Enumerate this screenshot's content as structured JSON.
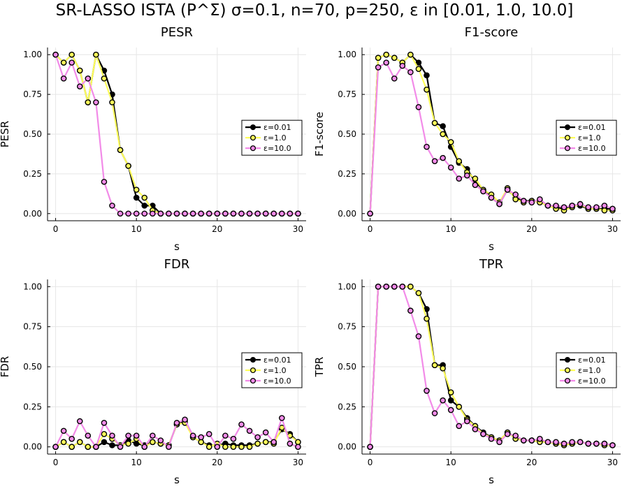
{
  "figure": {
    "title": "SR-LASSO ISTA (P^Σ)  σ=0.1,  n=70,  p=250,  ε in [0.01, 1.0, 10.0]"
  },
  "colors": {
    "eps_0_01": "#000000",
    "eps_1_0": "#ffff5a",
    "eps_10_0": "#f28be8",
    "marker_edge": "#000000",
    "grid": "#e6e6e6"
  },
  "chart_data": [
    {
      "type": "line",
      "title": "PESR",
      "xlabel": "s",
      "ylabel": "PESR",
      "xlim": [
        -1,
        31
      ],
      "ylim": [
        -0.045,
        1.045
      ],
      "xticks": [
        0,
        10,
        20,
        30
      ],
      "yticks": [
        "0.00",
        "0.25",
        "0.50",
        "0.75",
        "1.00"
      ],
      "grid": true,
      "legend": "right",
      "x": [
        0,
        1,
        2,
        3,
        4,
        5,
        6,
        7,
        8,
        9,
        10,
        11,
        12,
        13,
        14,
        15,
        16,
        17,
        18,
        19,
        20,
        21,
        22,
        23,
        24,
        25,
        26,
        27,
        28,
        29,
        30
      ],
      "series": [
        {
          "name": "ε=0.01",
          "values": [
            1.0,
            0.95,
            1.0,
            0.9,
            0.7,
            1.0,
            0.9,
            0.75,
            0.4,
            0.3,
            0.1,
            0.05,
            0.05,
            0,
            0,
            0,
            0,
            0,
            0,
            0,
            0,
            0,
            0,
            0,
            0,
            0,
            0,
            0,
            0,
            0,
            0
          ]
        },
        {
          "name": "ε=1.0",
          "values": [
            1.0,
            0.95,
            1.0,
            0.9,
            0.7,
            1.0,
            0.85,
            0.7,
            0.4,
            0.3,
            0.15,
            0.1,
            0.02,
            0,
            0,
            0,
            0,
            0,
            0,
            0,
            0,
            0,
            0,
            0,
            0,
            0,
            0,
            0,
            0,
            0,
            0
          ]
        },
        {
          "name": "ε=10.0",
          "values": [
            1.0,
            0.85,
            0.95,
            0.8,
            0.85,
            0.7,
            0.2,
            0.05,
            0,
            0,
            0,
            0,
            0,
            0,
            0,
            0,
            0,
            0,
            0,
            0,
            0,
            0,
            0,
            0,
            0,
            0,
            0,
            0,
            0,
            0,
            0
          ]
        }
      ]
    },
    {
      "type": "line",
      "title": "F1-score",
      "xlabel": "s",
      "ylabel": "F1-score",
      "xlim": [
        -1,
        31
      ],
      "ylim": [
        -0.045,
        1.045
      ],
      "xticks": [
        0,
        10,
        20,
        30
      ],
      "yticks": [
        "0.00",
        "0.25",
        "0.50",
        "0.75",
        "1.00"
      ],
      "grid": true,
      "legend": "right",
      "x": [
        0,
        1,
        2,
        3,
        4,
        5,
        6,
        7,
        8,
        9,
        10,
        11,
        12,
        13,
        14,
        15,
        16,
        17,
        18,
        19,
        20,
        21,
        22,
        23,
        24,
        25,
        26,
        27,
        28,
        29,
        30
      ],
      "series": [
        {
          "name": "ε=0.01",
          "values": [
            0,
            0.98,
            1.0,
            0.98,
            0.95,
            1.0,
            0.95,
            0.87,
            0.57,
            0.55,
            0.42,
            0.32,
            0.28,
            0.2,
            0.15,
            0.1,
            0.06,
            0.15,
            0.1,
            0.08,
            0.08,
            0.08,
            0.05,
            0.04,
            0.03,
            0.05,
            0.05,
            0.03,
            0.03,
            0.03,
            0.03
          ]
        },
        {
          "name": "ε=1.0",
          "values": [
            0,
            0.98,
            1.0,
            0.98,
            0.95,
            1.0,
            0.91,
            0.78,
            0.57,
            0.5,
            0.45,
            0.33,
            0.26,
            0.22,
            0.15,
            0.12,
            0.07,
            0.16,
            0.09,
            0.07,
            0.08,
            0.07,
            0.05,
            0.03,
            0.02,
            0.04,
            0.06,
            0.03,
            0.03,
            0.02,
            0.02
          ]
        },
        {
          "name": "ε=10.0",
          "values": [
            0,
            0.92,
            0.95,
            0.85,
            0.93,
            0.89,
            0.67,
            0.42,
            0.33,
            0.35,
            0.29,
            0.22,
            0.24,
            0.18,
            0.14,
            0.1,
            0.06,
            0.15,
            0.12,
            0.08,
            0.07,
            0.09,
            0.05,
            0.05,
            0.04,
            0.05,
            0.06,
            0.04,
            0.04,
            0.05,
            0.03
          ]
        }
      ]
    },
    {
      "type": "line",
      "title": "FDR",
      "xlabel": "s",
      "ylabel": "FDR",
      "xlim": [
        -1,
        31
      ],
      "ylim": [
        -0.045,
        1.045
      ],
      "xticks": [
        0,
        10,
        20,
        30
      ],
      "yticks": [
        "0.00",
        "0.25",
        "0.50",
        "0.75",
        "1.00"
      ],
      "grid": true,
      "legend": "right",
      "x": [
        0,
        1,
        2,
        3,
        4,
        5,
        6,
        7,
        8,
        9,
        10,
        11,
        12,
        13,
        14,
        15,
        16,
        17,
        18,
        19,
        20,
        21,
        22,
        23,
        24,
        25,
        26,
        27,
        28,
        29,
        30
      ],
      "series": [
        {
          "name": "ε=0.01",
          "values": [
            0,
            0.03,
            0,
            0.03,
            0,
            0,
            0.03,
            0.01,
            0.01,
            0.04,
            0.02,
            0.01,
            0.03,
            0.02,
            0.01,
            0.14,
            0.16,
            0.06,
            0.03,
            0.01,
            0.01,
            0.02,
            0.01,
            0.01,
            0.01,
            0.02,
            0.03,
            0.03,
            0.11,
            0.08,
            0.03
          ]
        },
        {
          "name": "ε=1.0",
          "values": [
            0,
            0.03,
            0,
            0.03,
            0,
            0,
            0.08,
            0.05,
            0.01,
            0.02,
            0.05,
            0,
            0.03,
            0.02,
            0.01,
            0.14,
            0.15,
            0.06,
            0.03,
            0,
            0.02,
            0,
            0,
            0,
            0,
            0.02,
            0.03,
            0.02,
            0.12,
            0.07,
            0.03
          ]
        },
        {
          "name": "ε=10.0",
          "values": [
            0,
            0.1,
            0.05,
            0.16,
            0.07,
            0,
            0.15,
            0.07,
            0,
            0.07,
            0.07,
            0,
            0.07,
            0.04,
            0,
            0.15,
            0.17,
            0.07,
            0.06,
            0.08,
            0,
            0.07,
            0.05,
            0.14,
            0.1,
            0.06,
            0.09,
            0.03,
            0.18,
            0.02,
            0
          ]
        }
      ]
    },
    {
      "type": "line",
      "title": "TPR",
      "xlabel": "s",
      "ylabel": "TPR",
      "xlim": [
        -1,
        31
      ],
      "ylim": [
        -0.045,
        1.045
      ],
      "xticks": [
        0,
        10,
        20,
        30
      ],
      "yticks": [
        "0.00",
        "0.25",
        "0.50",
        "0.75",
        "1.00"
      ],
      "grid": true,
      "legend": "right",
      "x": [
        0,
        1,
        2,
        3,
        4,
        5,
        6,
        7,
        8,
        9,
        10,
        11,
        12,
        13,
        14,
        15,
        16,
        17,
        18,
        19,
        20,
        21,
        22,
        23,
        24,
        25,
        26,
        27,
        28,
        29,
        30
      ],
      "series": [
        {
          "name": "ε=0.01",
          "values": [
            0,
            1.0,
            1.0,
            1.0,
            1.0,
            1.0,
            0.96,
            0.86,
            0.51,
            0.51,
            0.29,
            0.25,
            0.18,
            0.13,
            0.09,
            0.06,
            0.04,
            0.09,
            0.06,
            0.04,
            0.04,
            0.04,
            0.03,
            0.02,
            0.02,
            0.02,
            0.03,
            0.02,
            0.02,
            0.02,
            0.01
          ]
        },
        {
          "name": "ε=1.0",
          "values": [
            0,
            1.0,
            1.0,
            1.0,
            1.0,
            1.0,
            0.96,
            0.8,
            0.51,
            0.49,
            0.34,
            0.25,
            0.17,
            0.13,
            0.08,
            0.06,
            0.04,
            0.09,
            0.05,
            0.04,
            0.04,
            0.03,
            0.03,
            0.02,
            0.01,
            0.02,
            0.03,
            0.02,
            0.02,
            0.01,
            0.01
          ]
        },
        {
          "name": "ε=10.0",
          "values": [
            0,
            1.0,
            1.0,
            1.0,
            1.0,
            0.85,
            0.69,
            0.35,
            0.21,
            0.29,
            0.23,
            0.13,
            0.16,
            0.11,
            0.08,
            0.05,
            0.03,
            0.08,
            0.07,
            0.04,
            0.04,
            0.05,
            0.03,
            0.03,
            0.02,
            0.03,
            0.03,
            0.02,
            0.02,
            0.02,
            0.01
          ]
        }
      ]
    }
  ]
}
